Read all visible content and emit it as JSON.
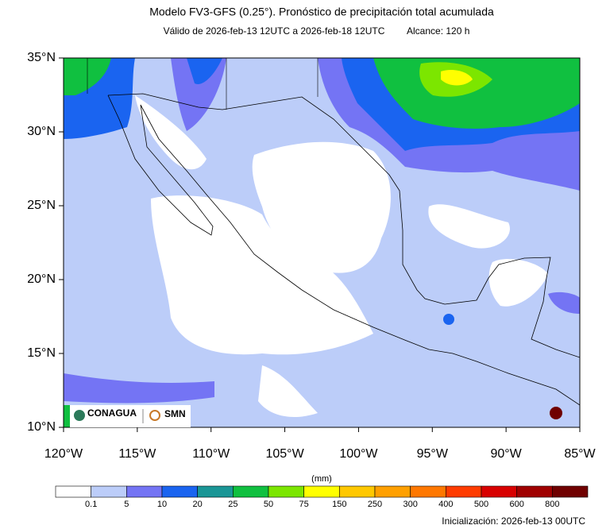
{
  "header": {
    "title": "Modelo FV3-GFS (0.25°). Pronóstico de precipitación total acumulada",
    "subtitle": "Válido de 2026-feb-13 12UTC a 2026-feb-18 12UTC",
    "range": "Alcance: 120 h"
  },
  "map": {
    "lat_ticks": [
      "35°N",
      "30°N",
      "25°N",
      "20°N",
      "15°N",
      "10°N"
    ],
    "lon_ticks": [
      "120°W",
      "115°W",
      "110°W",
      "105°W",
      "100°W",
      "95°W",
      "90°W",
      "85°W"
    ]
  },
  "logos": {
    "left": "CONAGUA",
    "right": "SMN"
  },
  "colorbar": {
    "unit": "(mm)",
    "labels": [
      0.1,
      5,
      10,
      20,
      25,
      50,
      75,
      150,
      250,
      300,
      400,
      500,
      600,
      800
    ],
    "colors": [
      "#ffffff",
      "#bccdf9",
      "#7474f4",
      "#1a64f0",
      "#1a9696",
      "#10c040",
      "#7ce600",
      "#ffff00",
      "#ffc800",
      "#ffa000",
      "#ff7800",
      "#ff3c00",
      "#d80000",
      "#a00000",
      "#700000"
    ]
  },
  "footer": {
    "init": "Inicialización: 2026-feb-13 00UTC"
  }
}
